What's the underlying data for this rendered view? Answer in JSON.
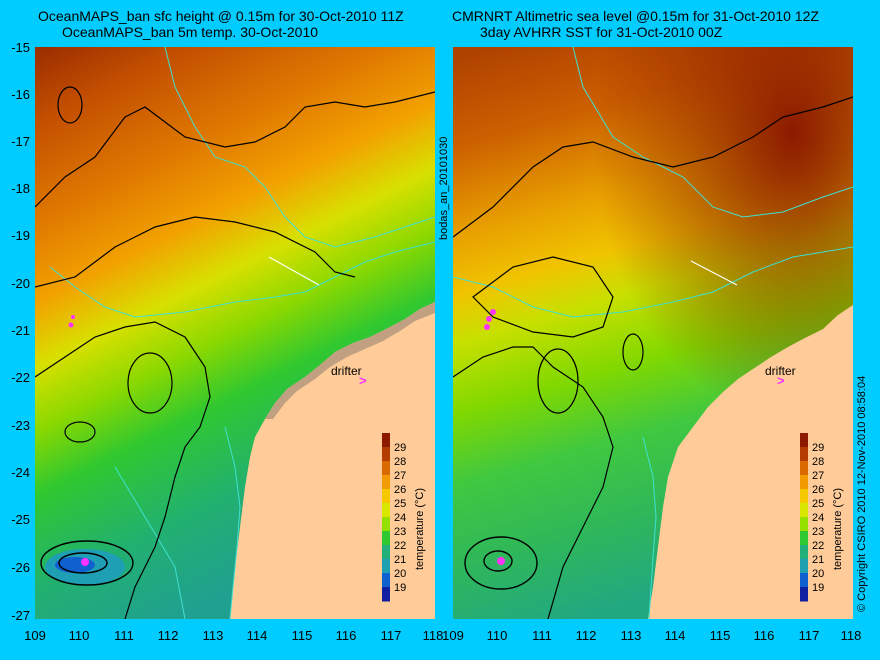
{
  "titles": {
    "left_line1": "OceanMAPS_ban sfc height @ 0.15m for 30-Oct-2010 11Z",
    "left_line2": "OceanMAPS_ban 5m temp. 30-Oct-2010",
    "right_line1": "CMRNRT Altimetric sea level  @0.15m  for 31-Oct-2010 12Z",
    "right_line2": "3day AVHRR SST for 31-Oct-2010 00Z"
  },
  "axes": {
    "lat_labels": [
      "-15",
      "-16",
      "-17",
      "-18",
      "-19",
      "-20",
      "-21",
      "-22",
      "-23",
      "-24",
      "-25",
      "-26",
      "-27"
    ],
    "lon_labels": [
      "109",
      "110",
      "111",
      "112",
      "113",
      "114",
      "115",
      "116",
      "117",
      "118"
    ]
  },
  "colorbar": {
    "title": "temperature (°C)",
    "ticks": [
      "29",
      "28",
      "27",
      "26",
      "25",
      "24",
      "23",
      "22",
      "21",
      "20",
      "19"
    ],
    "colors": [
      "#8b1a00",
      "#b33d00",
      "#d86a00",
      "#f29a00",
      "#f5c800",
      "#d8e600",
      "#96e000",
      "#30c830",
      "#21b07a",
      "#1fa0b0",
      "#1060d0",
      "#1020a0"
    ]
  },
  "annotations": {
    "drifter": "drifter",
    "center_vertical": "bodas_an_20101030",
    "right_vertical": "© Copyright CSIRO 2010   12-Nov-2010 08:58:04"
  },
  "colors": {
    "background": "#00ccff",
    "land": "#ffcc99",
    "isobath": "#40e0d0",
    "contour": "#000000",
    "marker": "#ff33ff"
  }
}
